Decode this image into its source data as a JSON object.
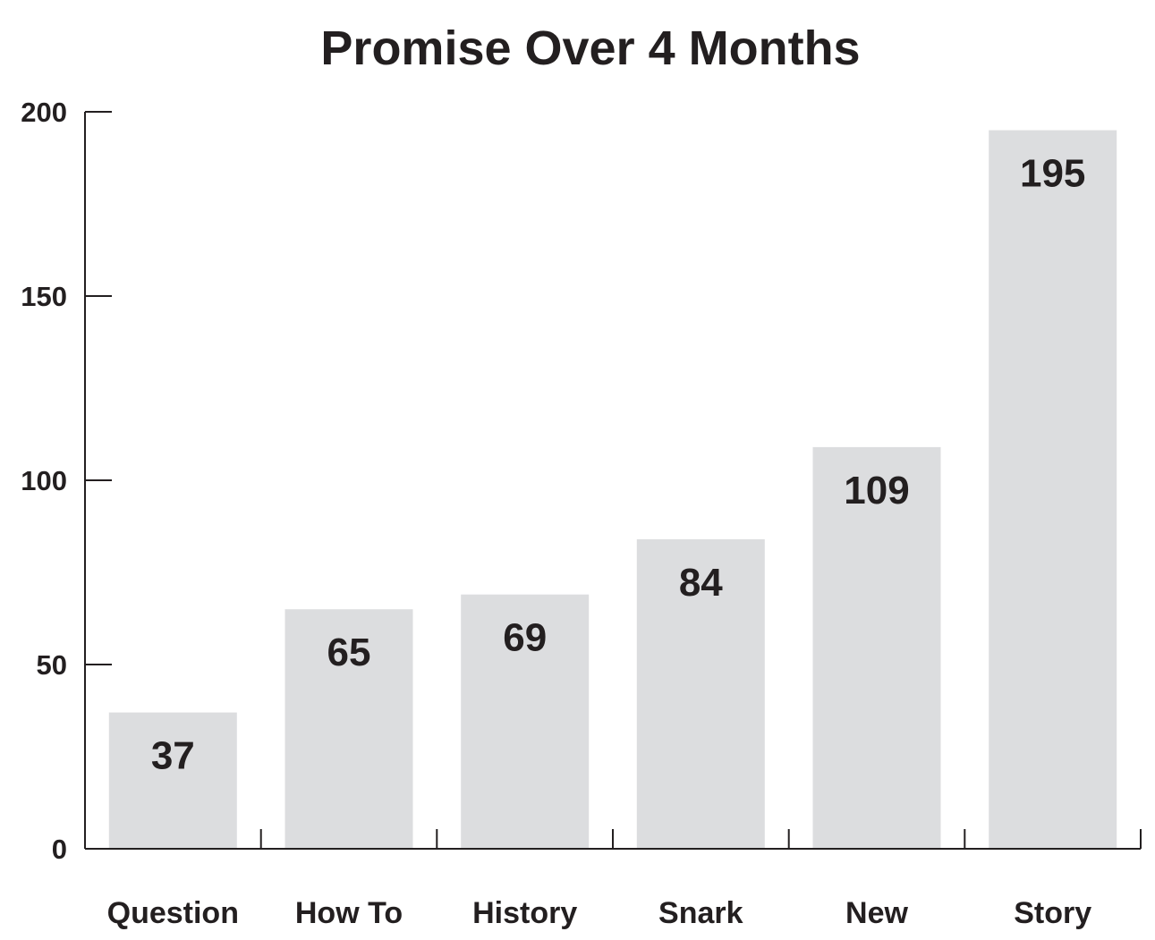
{
  "chart_data": {
    "type": "bar",
    "title": "Promise Over 4 Months",
    "xlabel": "",
    "ylabel": "",
    "categories": [
      "Question",
      "How To",
      "History",
      "Snark",
      "New",
      "Story"
    ],
    "values": [
      37,
      65,
      69,
      84,
      109,
      195
    ],
    "data_labels": [
      "37",
      "65",
      "69",
      "84",
      "109",
      "195"
    ],
    "ylim": [
      0,
      200
    ],
    "yticks": [
      0,
      50,
      100,
      150,
      200
    ],
    "ytick_labels": [
      "0",
      "50",
      "100",
      "150",
      "200"
    ],
    "grid": false,
    "legend": "none",
    "colors": {
      "bar": "#dcdddf",
      "axis": "#231f20",
      "text": "#231f20"
    }
  }
}
